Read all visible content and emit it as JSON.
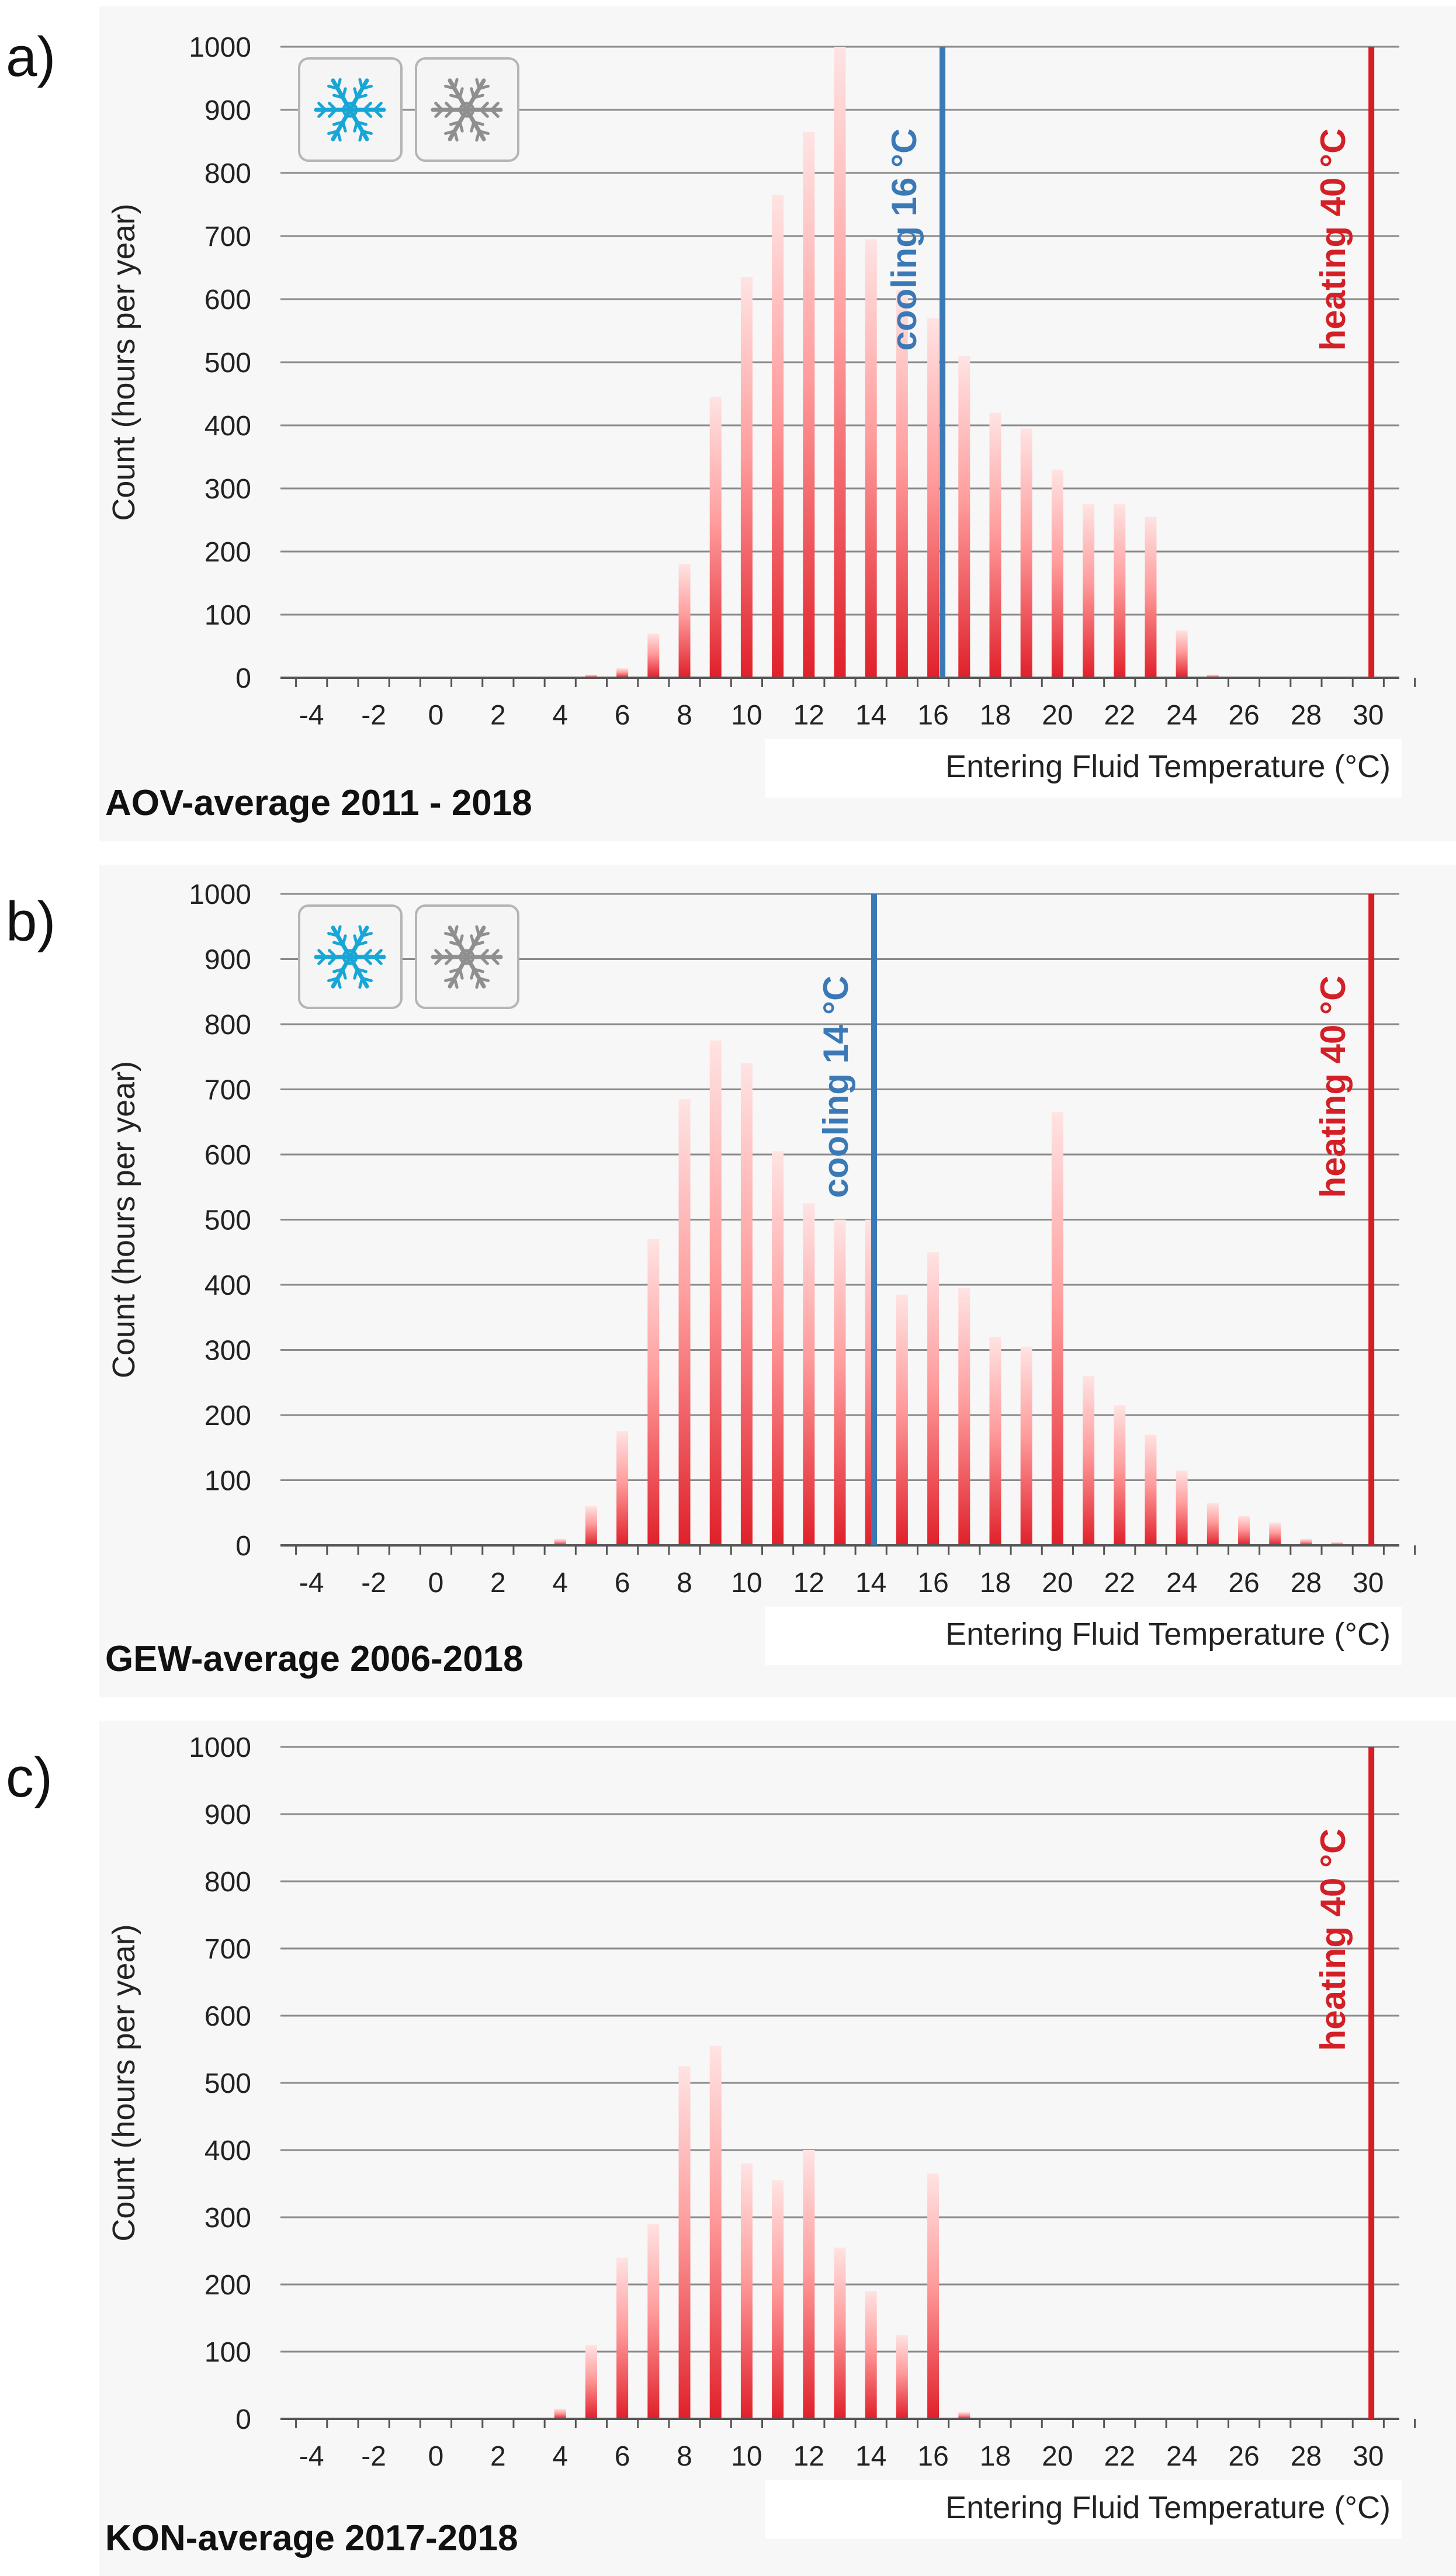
{
  "chart_data": [
    {
      "type": "bar",
      "panel_label": "a)",
      "title": "AOV-average 2011 - 2018",
      "xlabel": "Entering Fluid Temperature (°C)",
      "ylabel": "Count (hours per year)",
      "ylim": [
        0,
        1000
      ],
      "yticks": [
        0,
        100,
        200,
        300,
        400,
        500,
        600,
        700,
        800,
        900,
        1000
      ],
      "xlim": [
        -5,
        31
      ],
      "xticks": [
        -4,
        -2,
        0,
        2,
        4,
        6,
        8,
        10,
        12,
        14,
        16,
        18,
        20,
        22,
        24,
        26,
        28,
        30
      ],
      "grid": true,
      "show_icons": true,
      "icons": [
        "snowflake-blue-icon",
        "snowflake-gray-icon"
      ],
      "x": [
        -4,
        -3,
        -2,
        -1,
        0,
        1,
        2,
        3,
        4,
        5,
        6,
        7,
        8,
        9,
        10,
        11,
        12,
        13,
        14,
        15,
        16,
        17,
        18,
        19,
        20,
        21,
        22,
        23,
        24,
        25,
        26,
        27,
        28,
        29,
        30
      ],
      "values": [
        0,
        0,
        0,
        0,
        0,
        0,
        0,
        0,
        0,
        5,
        15,
        70,
        180,
        445,
        635,
        765,
        865,
        1000,
        695,
        615,
        570,
        510,
        420,
        395,
        330,
        275,
        275,
        255,
        75,
        5,
        0,
        0,
        0,
        0,
        0
      ],
      "vlines": [
        {
          "x": 16.3,
          "label": "cooling 16 °C",
          "color": "#3b79b6"
        },
        {
          "x": 30.1,
          "label": "heating 40 °C",
          "color": "#d32026"
        }
      ]
    },
    {
      "type": "bar",
      "panel_label": "b)",
      "title": "GEW-average 2006-2018",
      "xlabel": "Entering Fluid Temperature (°C)",
      "ylabel": "Count (hours per year)",
      "ylim": [
        0,
        1000
      ],
      "yticks": [
        0,
        100,
        200,
        300,
        400,
        500,
        600,
        700,
        800,
        900,
        1000
      ],
      "xlim": [
        -5,
        31
      ],
      "xticks": [
        -4,
        -2,
        0,
        2,
        4,
        6,
        8,
        10,
        12,
        14,
        16,
        18,
        20,
        22,
        24,
        26,
        28,
        30
      ],
      "grid": true,
      "show_icons": true,
      "icons": [
        "snowflake-blue-icon",
        "snowflake-gray-icon"
      ],
      "x": [
        -4,
        -3,
        -2,
        -1,
        0,
        1,
        2,
        3,
        4,
        5,
        6,
        7,
        8,
        9,
        10,
        11,
        12,
        13,
        14,
        15,
        16,
        17,
        18,
        19,
        20,
        21,
        22,
        23,
        24,
        25,
        26,
        27,
        28,
        29,
        30
      ],
      "values": [
        0,
        0,
        0,
        0,
        0,
        0,
        0,
        0,
        10,
        60,
        175,
        470,
        685,
        775,
        740,
        605,
        525,
        500,
        500,
        385,
        450,
        395,
        320,
        305,
        665,
        260,
        215,
        170,
        115,
        65,
        45,
        35,
        10,
        5,
        0
      ],
      "vlines": [
        {
          "x": 14.1,
          "label": "cooling 14 °C",
          "color": "#3b79b6"
        },
        {
          "x": 30.1,
          "label": "heating 40 °C",
          "color": "#d32026"
        }
      ]
    },
    {
      "type": "bar",
      "panel_label": "c)",
      "title": "KON-average 2017-2018",
      "xlabel": "Entering Fluid Temperature (°C)",
      "ylabel": "Count (hours per year)",
      "ylim": [
        0,
        1000
      ],
      "yticks": [
        0,
        100,
        200,
        300,
        400,
        500,
        600,
        700,
        800,
        900,
        1000
      ],
      "xlim": [
        -5,
        31
      ],
      "xticks": [
        -4,
        -2,
        0,
        2,
        4,
        6,
        8,
        10,
        12,
        14,
        16,
        18,
        20,
        22,
        24,
        26,
        28,
        30
      ],
      "grid": true,
      "show_icons": false,
      "icons": [],
      "x": [
        -4,
        -3,
        -2,
        -1,
        0,
        1,
        2,
        3,
        4,
        5,
        6,
        7,
        8,
        9,
        10,
        11,
        12,
        13,
        14,
        15,
        16,
        17,
        18,
        19,
        20,
        21,
        22,
        23,
        24,
        25,
        26,
        27,
        28,
        29,
        30
      ],
      "values": [
        0,
        0,
        0,
        0,
        0,
        0,
        0,
        0,
        15,
        110,
        240,
        290,
        525,
        555,
        380,
        355,
        400,
        255,
        190,
        125,
        365,
        10,
        0,
        0,
        0,
        0,
        0,
        0,
        0,
        0,
        0,
        0,
        0,
        0,
        0
      ],
      "vlines": [
        {
          "x": 30.1,
          "label": "heating 40 °C",
          "color": "#d32026"
        }
      ]
    }
  ],
  "colors": {
    "bar_dark": "#e0202a",
    "bar_light": "#ffd6d6",
    "grid": "#8a8a8a",
    "panel_bg": "#f7f7f7"
  }
}
